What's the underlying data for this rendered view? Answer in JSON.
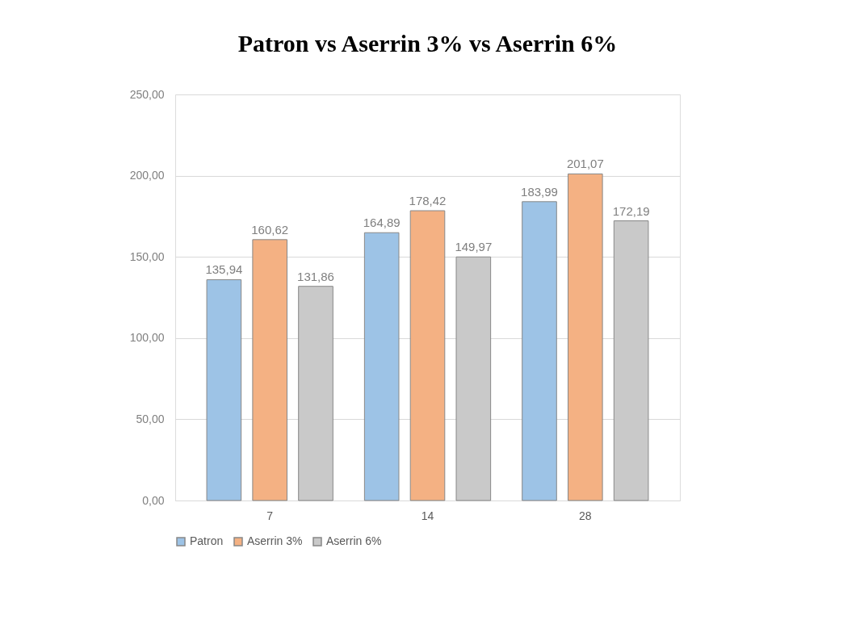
{
  "chart_data": {
    "type": "bar",
    "title": "Patron vs Aserrin 3% vs Aserrin 6%",
    "categories": [
      "7",
      "14",
      "28"
    ],
    "series": [
      {
        "name": "Patron",
        "color": "#9dc3e6",
        "values": [
          135.94,
          164.89,
          183.99
        ],
        "value_labels": [
          "135,94",
          "164,89",
          "183,99"
        ]
      },
      {
        "name": "Aserrin 3%",
        "color": "#f4b183",
        "values": [
          160.62,
          178.42,
          201.07
        ],
        "value_labels": [
          "160,62",
          "178,42",
          "201,07"
        ]
      },
      {
        "name": "Aserrin 6%",
        "color": "#c9c9c9",
        "values": [
          131.86,
          149.97,
          172.19
        ],
        "value_labels": [
          "131,86",
          "149,97",
          "172,19"
        ]
      }
    ],
    "ylim": [
      0,
      250
    ],
    "yticks": [
      {
        "value": 0,
        "label": "0,00"
      },
      {
        "value": 50,
        "label": "50,00"
      },
      {
        "value": 100,
        "label": "100,00"
      },
      {
        "value": 150,
        "label": "150,00"
      },
      {
        "value": 200,
        "label": "200,00"
      },
      {
        "value": 250,
        "label": "250,00"
      }
    ],
    "grid": "y",
    "legend": "bottom"
  }
}
